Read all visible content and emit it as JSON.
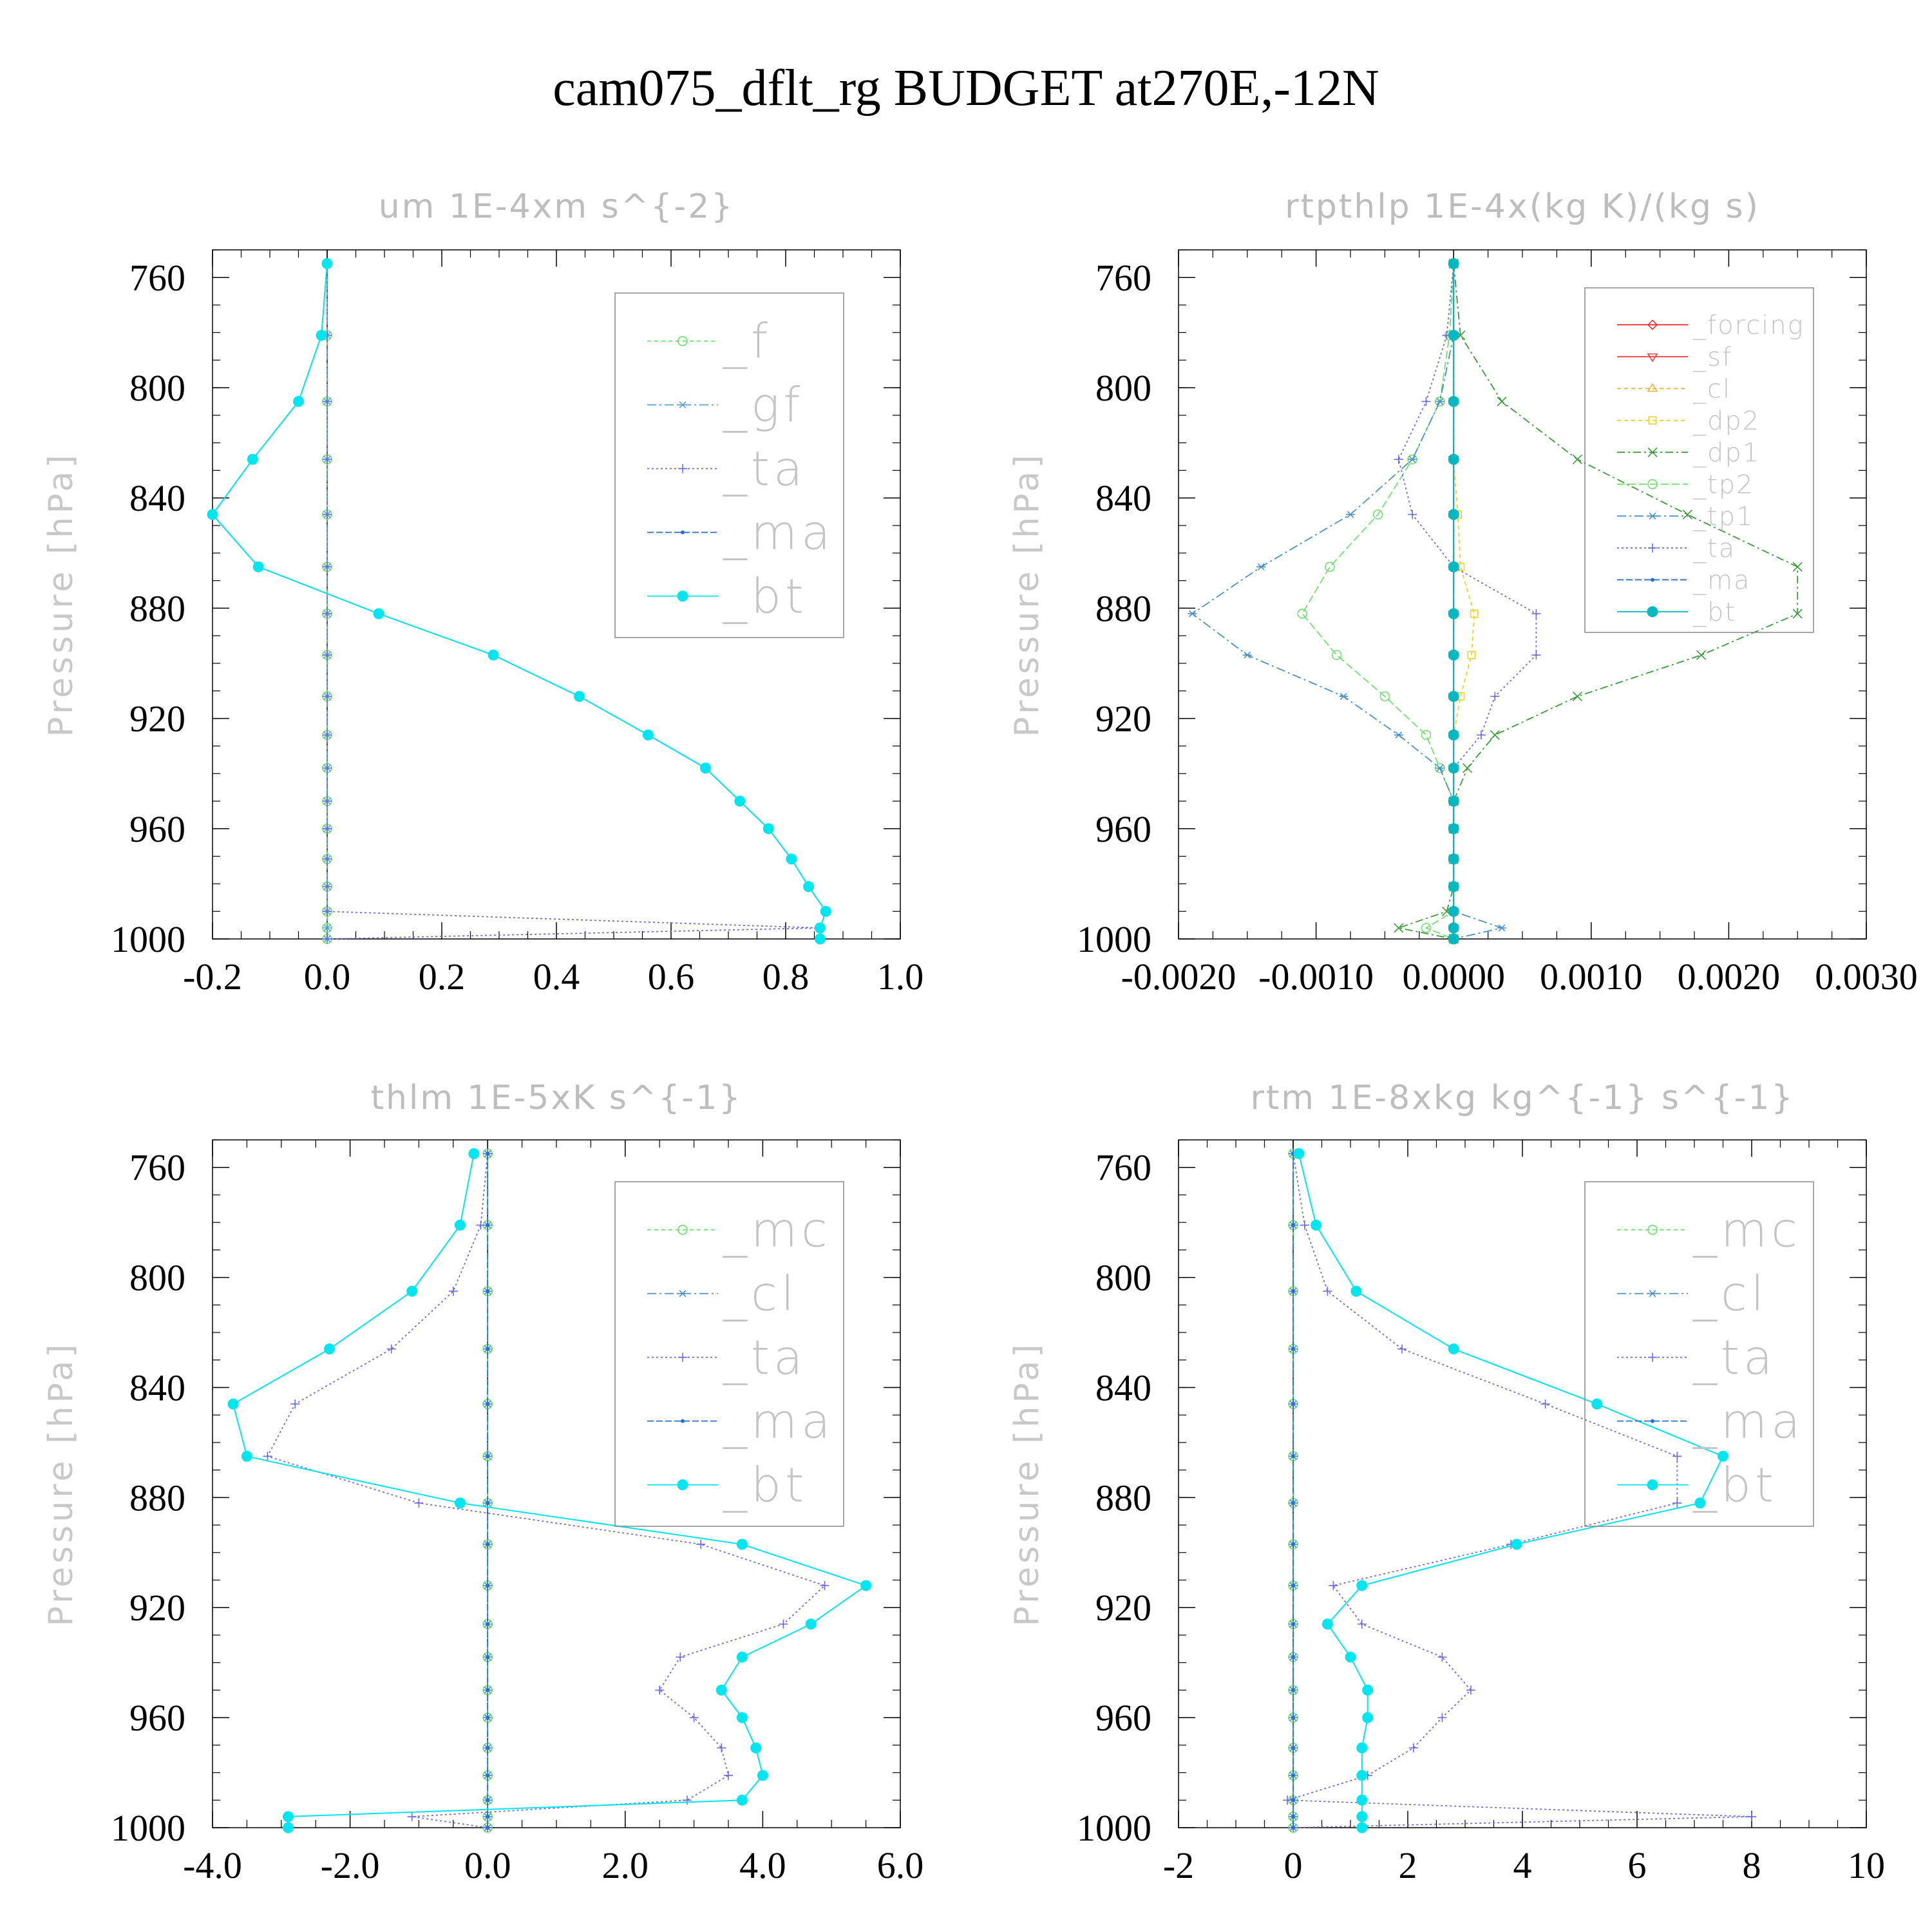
{
  "title": "cam075_dflt_rg  BUDGET at270E,-12N",
  "chart_data": [
    {
      "type": "line",
      "title": "um  1E-4xm s^{-2}",
      "ylabel": "Pressure [hPa]",
      "xlabel": "",
      "xlim": [
        -0.2,
        1.0
      ],
      "ylim": [
        1000,
        750
      ],
      "x_ticks": [
        -0.2,
        0.0,
        0.2,
        0.4,
        0.6,
        0.8,
        1.0
      ],
      "x_tick_labels": [
        "-0.2",
        "0.0",
        "0.2",
        "0.4",
        "0.6",
        "0.8",
        "1.0"
      ],
      "y_ticks": [
        760,
        800,
        840,
        880,
        920,
        960,
        1000
      ],
      "y_tick_labels": [
        "760",
        "800",
        "840",
        "880",
        "920",
        "960",
        "1000"
      ],
      "legend_position": "top-right",
      "grid": false,
      "pressure": [
        755,
        781,
        805,
        826,
        846,
        865,
        882,
        897,
        912,
        926,
        938,
        950,
        960,
        971,
        981,
        990,
        996,
        1000
      ],
      "series": [
        {
          "name": "_f",
          "color": "#66e066",
          "marker": "circle",
          "dash": "6 5",
          "values": [
            0,
            0,
            0,
            0,
            0,
            0,
            0,
            0,
            0,
            0,
            0,
            0,
            0,
            0,
            0,
            0,
            0,
            0
          ]
        },
        {
          "name": "_gf",
          "color": "#5aa0d0",
          "marker": "asterisk",
          "dash": "14 5 3 5",
          "values": [
            0,
            0,
            0,
            0,
            0,
            0,
            0,
            0,
            0,
            0,
            0,
            0,
            0,
            0,
            0,
            0,
            0,
            0
          ]
        },
        {
          "name": "_ta",
          "color": "#6a6ae0",
          "marker": "plus",
          "dash": "3 4",
          "values": [
            0,
            0,
            0,
            0,
            0,
            0,
            0,
            0,
            0,
            0,
            0,
            0,
            0,
            0,
            0,
            0,
            0.86,
            0
          ]
        },
        {
          "name": "_ma",
          "color": "#2a6fd0",
          "marker": "dot",
          "dash": "10 4",
          "values": [
            0,
            -0.01,
            -0.05,
            -0.13,
            -0.2,
            -0.12,
            0.09,
            0.29,
            0.44,
            0.56,
            0.66,
            0.72,
            0.77,
            0.81,
            0.84,
            0.87,
            0.86,
            0.86
          ]
        },
        {
          "name": "_bt",
          "color": "#00e5ee",
          "marker": "filled",
          "dash": "",
          "values": [
            0,
            -0.01,
            -0.05,
            -0.13,
            -0.2,
            -0.12,
            0.09,
            0.29,
            0.44,
            0.56,
            0.66,
            0.72,
            0.77,
            0.81,
            0.84,
            0.87,
            0.86,
            0.86
          ]
        }
      ]
    },
    {
      "type": "line",
      "title": "rtpthlp  1E-4x(kg K)/(kg s)",
      "ylabel": "Pressure [hPa]",
      "xlabel": "",
      "xlim": [
        -0.002,
        0.003
      ],
      "ylim": [
        1000,
        750
      ],
      "x_ticks": [
        -0.002,
        -0.001,
        0.0,
        0.001,
        0.002,
        0.003
      ],
      "x_tick_labels": [
        "-0.0020",
        "-0.0010",
        "0.0000",
        "0.0010",
        "0.0020",
        "0.0030"
      ],
      "y_ticks": [
        760,
        800,
        840,
        880,
        920,
        960,
        1000
      ],
      "y_tick_labels": [
        "760",
        "800",
        "840",
        "880",
        "920",
        "960",
        "1000"
      ],
      "legend_position": "top-right",
      "grid": false,
      "pressure": [
        755,
        781,
        805,
        826,
        846,
        865,
        882,
        897,
        912,
        926,
        938,
        950,
        960,
        971,
        981,
        990,
        996,
        1000
      ],
      "series": [
        {
          "name": "_forcing",
          "color": "#ee3030",
          "marker": "diamond",
          "dash": "",
          "values": [
            0,
            0,
            0,
            0,
            0,
            0,
            0,
            0,
            0,
            0,
            0,
            0,
            0,
            0,
            0,
            0,
            0,
            0
          ]
        },
        {
          "name": "_sf",
          "color": "#ee4040",
          "marker": "tri-down",
          "dash": "",
          "values": [
            0,
            0,
            0,
            0,
            0,
            0,
            0,
            0,
            0,
            0,
            0,
            0,
            0,
            0,
            0,
            0,
            0,
            0
          ]
        },
        {
          "name": "_cl",
          "color": "#f0b040",
          "marker": "tri-up",
          "dash": "6 5",
          "values": [
            0,
            0,
            0,
            0,
            0,
            0,
            0,
            0,
            0,
            0,
            0,
            0,
            0,
            0,
            0,
            0,
            0,
            0
          ]
        },
        {
          "name": "_dp2",
          "color": "#f0d020",
          "marker": "square",
          "dash": "6 5",
          "values": [
            0,
            0,
            0,
            0,
            3e-05,
            5e-05,
            0.00015,
            0.00013,
            5e-05,
            0,
            0,
            0,
            0,
            0,
            0,
            0,
            0,
            0
          ]
        },
        {
          "name": "_dp1",
          "color": "#3a9a3a",
          "marker": "x",
          "dash": "12 5 3 5",
          "values": [
            0,
            5e-05,
            0.00035,
            0.0009,
            0.0017,
            0.0025,
            0.0025,
            0.0018,
            0.0009,
            0.0003,
            0.0001,
            0,
            0,
            0,
            0,
            -5e-05,
            -0.0004,
            0
          ]
        },
        {
          "name": "_tp2",
          "color": "#70e070",
          "marker": "circle",
          "dash": "12 5",
          "values": [
            0,
            -3e-05,
            -0.0001,
            -0.0003,
            -0.00055,
            -0.0009,
            -0.0011,
            -0.00085,
            -0.0005,
            -0.0002,
            -0.0001,
            0,
            0,
            0,
            0,
            0,
            -0.0002,
            0
          ]
        },
        {
          "name": "_tp1",
          "color": "#4a90c8",
          "marker": "asterisk",
          "dash": "14 5 3 5",
          "values": [
            0,
            0,
            -0.0001,
            -0.0003,
            -0.00075,
            -0.0014,
            -0.0019,
            -0.0015,
            -0.0008,
            -0.0004,
            -0.0001,
            0,
            0,
            0,
            0,
            0,
            0.00035,
            0
          ]
        },
        {
          "name": "_ta",
          "color": "#6a6ae0",
          "marker": "plus",
          "dash": "3 4",
          "values": [
            0,
            -5e-05,
            -0.0002,
            -0.0004,
            -0.0003,
            0,
            0.0006,
            0.0006,
            0.0003,
            0.0002,
            0,
            0,
            0,
            0,
            0,
            0,
            0,
            0
          ]
        },
        {
          "name": "_ma",
          "color": "#2a6fd0",
          "marker": "dot",
          "dash": "10 4",
          "values": [
            0,
            0,
            0,
            0,
            0,
            0,
            0,
            0,
            0,
            0,
            0,
            0,
            0,
            0,
            0,
            0,
            0,
            0
          ]
        },
        {
          "name": "_bt",
          "color": "#00b8c0",
          "marker": "filled",
          "dash": "",
          "values": [
            0,
            0,
            0,
            0,
            0,
            0,
            0,
            0,
            0,
            0,
            0,
            0,
            0,
            0,
            0,
            0,
            0,
            0
          ]
        }
      ]
    },
    {
      "type": "line",
      "title": "thlm  1E-5xK s^{-1}",
      "ylabel": "Pressure [hPa]",
      "xlabel": "",
      "xlim": [
        -4.0,
        6.0
      ],
      "ylim": [
        1000,
        750
      ],
      "x_ticks": [
        -4.0,
        -2.0,
        0.0,
        2.0,
        4.0,
        6.0
      ],
      "x_tick_labels": [
        "-4.0",
        "-2.0",
        "0.0",
        "2.0",
        "4.0",
        "6.0"
      ],
      "y_ticks": [
        760,
        800,
        840,
        880,
        920,
        960,
        1000
      ],
      "y_tick_labels": [
        "760",
        "800",
        "840",
        "880",
        "920",
        "960",
        "1000"
      ],
      "legend_position": "top-right",
      "grid": false,
      "pressure": [
        755,
        781,
        805,
        826,
        846,
        865,
        882,
        897,
        912,
        926,
        938,
        950,
        960,
        971,
        981,
        990,
        996,
        1000
      ],
      "series": [
        {
          "name": "_mc",
          "color": "#66e066",
          "marker": "circle",
          "dash": "6 5",
          "values": [
            0,
            0,
            0,
            0,
            0,
            0,
            0,
            0,
            0,
            0,
            0,
            0,
            0,
            0,
            0,
            0,
            0,
            0
          ]
        },
        {
          "name": "_cl",
          "color": "#4a90c8",
          "marker": "asterisk",
          "dash": "14 5 3 5",
          "values": [
            0,
            0,
            0,
            0,
            0,
            0,
            0,
            0,
            0,
            0,
            0,
            0,
            0,
            0,
            0,
            0,
            0,
            0
          ]
        },
        {
          "name": "_ta",
          "color": "#6a6ae0",
          "marker": "plus",
          "dash": "3 4",
          "values": [
            0,
            -0.1,
            -0.5,
            -1.4,
            -2.8,
            -3.2,
            -1.0,
            3.1,
            4.9,
            4.3,
            2.8,
            2.5,
            3.0,
            3.4,
            3.5,
            2.9,
            -1.1,
            0
          ]
        },
        {
          "name": "_ma",
          "color": "#2a6fd0",
          "marker": "dot",
          "dash": "10 4",
          "values": [
            0,
            0,
            0,
            0,
            0,
            0,
            0,
            0,
            0,
            0,
            0,
            0,
            0,
            0,
            0,
            0,
            0,
            0
          ]
        },
        {
          "name": "_bt",
          "color": "#00e5ee",
          "marker": "filled",
          "dash": "",
          "values": [
            -0.2,
            -0.4,
            -1.1,
            -2.3,
            -3.7,
            -3.5,
            -0.4,
            3.7,
            5.5,
            4.7,
            3.7,
            3.4,
            3.7,
            3.9,
            4.0,
            3.7,
            -2.9,
            -2.9
          ]
        }
      ]
    },
    {
      "type": "line",
      "title": "rtm  1E-8xkg kg^{-1} s^{-1}",
      "ylabel": "Pressure [hPa]",
      "xlabel": "",
      "xlim": [
        -2,
        10
      ],
      "ylim": [
        1000,
        750
      ],
      "x_ticks": [
        -2,
        0,
        2,
        4,
        6,
        8,
        10
      ],
      "x_tick_labels": [
        "-2",
        "0",
        "2",
        "4",
        "6",
        "8",
        "10"
      ],
      "y_ticks": [
        760,
        800,
        840,
        880,
        920,
        960,
        1000
      ],
      "y_tick_labels": [
        "760",
        "800",
        "840",
        "880",
        "920",
        "960",
        "1000"
      ],
      "legend_position": "top-right",
      "grid": false,
      "pressure": [
        755,
        781,
        805,
        826,
        846,
        865,
        882,
        897,
        912,
        926,
        938,
        950,
        960,
        971,
        981,
        990,
        996,
        1000
      ],
      "series": [
        {
          "name": "_mc",
          "color": "#66e066",
          "marker": "circle",
          "dash": "6 5",
          "values": [
            0,
            0,
            0,
            0,
            0,
            0,
            0,
            0,
            0,
            0,
            0,
            0,
            0,
            0,
            0,
            0,
            0,
            0
          ]
        },
        {
          "name": "_cl",
          "color": "#4a90c8",
          "marker": "asterisk",
          "dash": "14 5 3 5",
          "values": [
            0,
            0,
            0,
            0,
            0,
            0,
            0,
            0,
            0,
            0,
            0,
            0,
            0,
            0,
            0,
            0,
            0,
            0
          ]
        },
        {
          "name": "_ta",
          "color": "#6a6ae0",
          "marker": "plus",
          "dash": "3 4",
          "values": [
            0,
            0.2,
            0.6,
            1.9,
            4.4,
            6.7,
            6.7,
            3.8,
            0.7,
            1.2,
            2.6,
            3.1,
            2.6,
            2.1,
            1.3,
            -0.1,
            8.0,
            0
          ]
        },
        {
          "name": "_ma",
          "color": "#2a6fd0",
          "marker": "dot",
          "dash": "10 4",
          "values": [
            0,
            0,
            0,
            0,
            0,
            0,
            0,
            0,
            0,
            0,
            0,
            0,
            0,
            0,
            0,
            0,
            0,
            0
          ]
        },
        {
          "name": "_bt",
          "color": "#00e5ee",
          "marker": "filled",
          "dash": "",
          "values": [
            0.1,
            0.4,
            1.1,
            2.8,
            5.3,
            7.5,
            7.1,
            3.9,
            1.2,
            0.6,
            1.0,
            1.3,
            1.3,
            1.2,
            1.2,
            1.2,
            1.2,
            1.2
          ]
        }
      ]
    }
  ]
}
